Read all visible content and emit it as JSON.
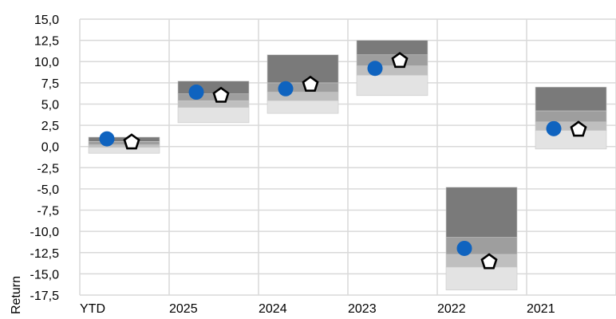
{
  "chart_data": {
    "type": "floating-bar-quartile",
    "ylabel": "Return",
    "xlabel": "",
    "ylim": [
      -17.5,
      15
    ],
    "ytick_step": 2.5,
    "decimal_separator": ",",
    "grid": true,
    "categories": [
      "YTD",
      "2025",
      "2024",
      "2023",
      "2022",
      "2021"
    ],
    "quartile_bands": {
      "boundaries": [
        [
          -0.8,
          -0.1,
          0.2,
          0.6,
          1.1
        ],
        [
          2.8,
          4.6,
          5.4,
          6.2,
          7.7
        ],
        [
          3.9,
          5.4,
          6.4,
          7.5,
          10.8
        ],
        [
          6.0,
          8.4,
          9.5,
          10.8,
          12.5
        ],
        [
          -16.9,
          -14.2,
          -12.7,
          -10.7,
          -4.8
        ],
        [
          -0.3,
          1.9,
          2.9,
          4.2,
          7.0
        ]
      ],
      "colors": [
        "#e3e3e3",
        "#bfbfbf",
        "#9e9e9e",
        "#7a7a7a"
      ]
    },
    "series": [
      {
        "marker": "circle",
        "color": "#0f63bf",
        "values": [
          0.9,
          6.4,
          6.8,
          9.2,
          -12.0,
          2.1
        ]
      },
      {
        "marker": "pentagon",
        "color": "#000000",
        "values": [
          0.5,
          6.0,
          7.3,
          10.1,
          -13.6,
          2.0
        ]
      }
    ]
  }
}
